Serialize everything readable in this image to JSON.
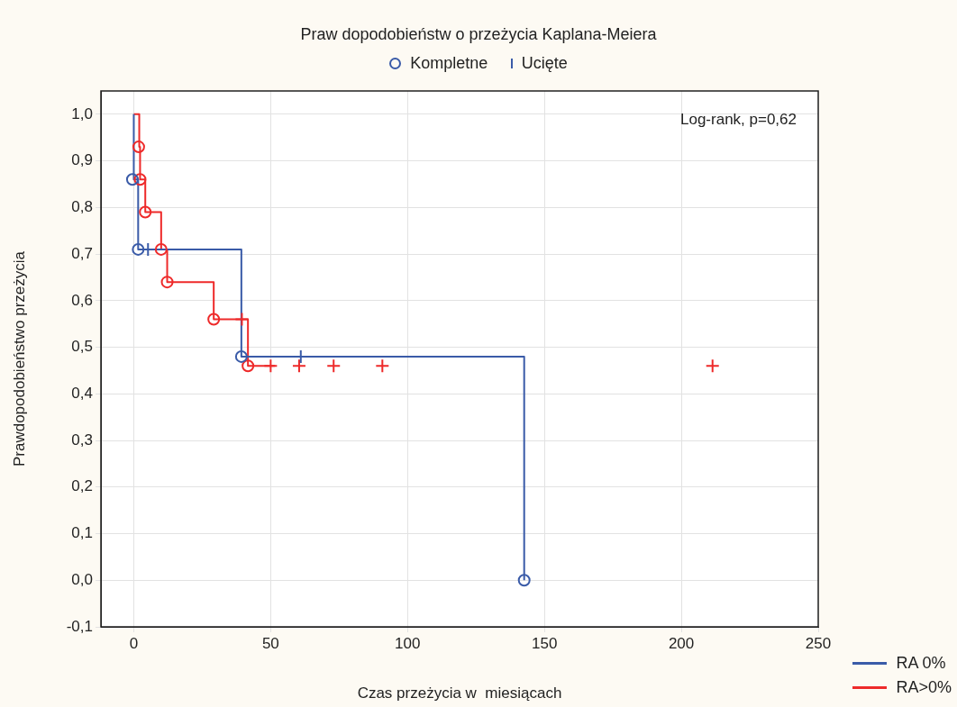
{
  "chart_data": {
    "type": "step",
    "title": "Praw dopodobieństw o przeżycia Kaplana-Meiera",
    "xlabel": "Czas przeżycia w  miesiącach",
    "ylabel": "Prawdopodobieństwo przeżycia",
    "annotations": [
      "Log-rank, p=0,62",
      "Kompletne",
      "Ucięte"
    ],
    "xlim": [
      -12,
      250
    ],
    "xticks": [
      0,
      50,
      100,
      150,
      200,
      250
    ],
    "ylim": [
      -0.1,
      1.05
    ],
    "yticks": [
      {
        "value": -0.1,
        "label": "-0,1"
      },
      {
        "value": 0,
        "label": "0,0"
      },
      {
        "value": 0.1,
        "label": "0,1"
      },
      {
        "value": 0.2,
        "label": "0,2"
      },
      {
        "value": 0.3,
        "label": "0,3"
      },
      {
        "value": 0.4,
        "label": "0,4"
      },
      {
        "value": 0.5,
        "label": "0,5"
      },
      {
        "value": 0.6,
        "label": "0,6"
      },
      {
        "value": 0.7,
        "label": "0,7"
      },
      {
        "value": 0.8,
        "label": "0,8"
      },
      {
        "value": 0.9,
        "label": "0,9"
      },
      {
        "value": 1,
        "label": "1,0"
      }
    ],
    "grid": true,
    "legend": "bottom right",
    "marker": "none",
    "series": [
      {
        "name": "RA 0%",
        "color": "#3a5ba8",
        "x": [
          0,
          0,
          1.6,
          39.3,
          142.6
        ],
        "values": [
          1,
          0.86,
          0.71,
          0.48,
          0
        ]
      },
      {
        "name": "RA>0%",
        "color": "#ee2a2a",
        "x": [
          0,
          2,
          2.3,
          4.2,
          10,
          12.2,
          29.2,
          41.7,
          51.5
        ],
        "values": [
          1,
          0.93,
          0.86,
          0.79,
          0.71,
          0.64,
          0.56,
          0.46,
          0.46
        ]
      },
      {
        "type": "scatter",
        "marker": "circle",
        "color": "#3a5ba8",
        "x": [
          -0.5,
          1.6,
          39.3,
          142.6
        ],
        "values": [
          0.86,
          0.71,
          0.48,
          0
        ]
      },
      {
        "type": "scatter",
        "marker": "circle",
        "color": "#ee2a2a",
        "x": [
          1.8,
          2.3,
          4.2,
          10,
          12.2,
          29.2,
          41.7
        ],
        "values": [
          0.93,
          0.86,
          0.79,
          0.71,
          0.64,
          0.56,
          0.46
        ]
      },
      {
        "type": "scatter",
        "marker": "cross",
        "color": "#3a5ba8",
        "x": [
          5.2,
          61
        ],
        "values": [
          0.71,
          0.48
        ]
      },
      {
        "type": "scatter",
        "marker": "cross",
        "color": "#ee2a2a",
        "x": [
          39.5,
          50,
          60.4,
          73,
          90.8,
          211.4
        ],
        "values": [
          0.56,
          0.46,
          0.46,
          0.46,
          0.46,
          0.46
        ]
      }
    ]
  }
}
